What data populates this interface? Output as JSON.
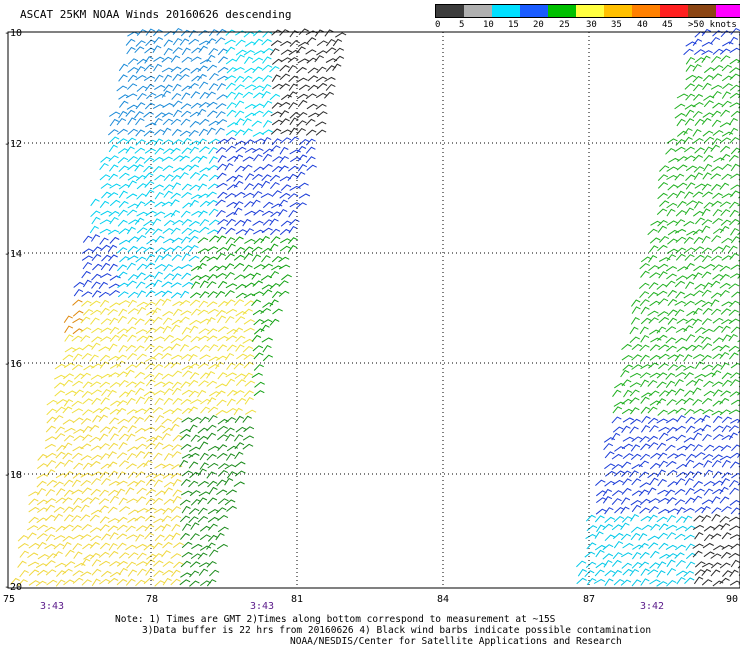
{
  "title": "ASCAT 25KM NOAA Winds 20160626 descending",
  "legend": {
    "colors": [
      "#3c3c3c",
      "#b0b0b0",
      "#00e0ff",
      "#1a5cff",
      "#00c000",
      "#ffff40",
      "#ffc000",
      "#ff8000",
      "#ff2020",
      "#8b4513",
      "#ff00ff",
      "#6a0dad"
    ],
    "labels": [
      "0",
      "5",
      "10",
      "15",
      "20",
      "25",
      "30",
      "35",
      "40",
      "45",
      ">50 knots"
    ]
  },
  "axes": {
    "lat_labels": [
      "-10",
      "-12",
      "-14",
      "-16",
      "-18",
      "-20"
    ],
    "lon_labels": [
      "75",
      "78",
      "81",
      "84",
      "87",
      "90"
    ]
  },
  "swath_times": [
    "3:43",
    "3:43",
    "3:42"
  ],
  "notes": {
    "line1": "Note: 1) Times are GMT 2)Times along bottom correspond to measurement at ~15S",
    "line2": "3)Data buffer is 22 hrs from 20160626 4) Black wind barbs indicate possible contamination",
    "line3": "NOAA/NESDIS/Center for Satellite Applications and Research"
  },
  "icon": "wind-barb-icon"
}
